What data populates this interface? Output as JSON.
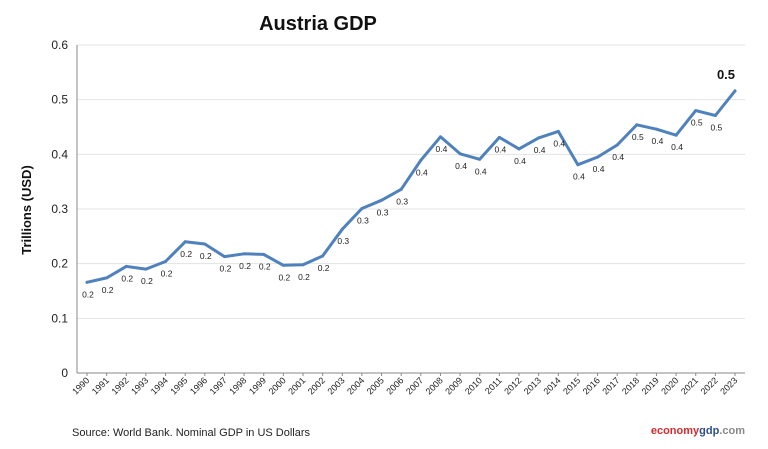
{
  "chart_data": {
    "type": "line",
    "title": "Austria GDP",
    "ylabel": "Trillions (USD)",
    "xlabel": "",
    "ylim": [
      0,
      0.6
    ],
    "yticks": [
      0,
      0.1,
      0.2,
      0.3,
      0.4,
      0.5,
      0.6
    ],
    "grid": true,
    "line_color": "#4f81bd",
    "x": [
      "1990",
      "1991",
      "1992",
      "1993",
      "1994",
      "1995",
      "1996",
      "1997",
      "1998",
      "1999",
      "2000",
      "2001",
      "2002",
      "2003",
      "2004",
      "2005",
      "2006",
      "2007",
      "2008",
      "2009",
      "2010",
      "2011",
      "2012",
      "2013",
      "2014",
      "2015",
      "2016",
      "2017",
      "2018",
      "2019",
      "2020",
      "2021",
      "2022",
      "2023"
    ],
    "values": [
      0.166,
      0.174,
      0.195,
      0.19,
      0.204,
      0.24,
      0.236,
      0.213,
      0.218,
      0.217,
      0.197,
      0.198,
      0.214,
      0.263,
      0.301,
      0.316,
      0.336,
      0.389,
      0.432,
      0.401,
      0.391,
      0.431,
      0.41,
      0.43,
      0.442,
      0.381,
      0.395,
      0.417,
      0.454,
      0.446,
      0.435,
      0.48,
      0.471,
      0.516
    ],
    "data_labels": [
      "0.2",
      "0.2",
      "0.2",
      "0.2",
      "0.2",
      "0.2",
      "0.2",
      "0.2",
      "0.2",
      "0.2",
      "0.2",
      "0.2",
      "0.2",
      "0.3",
      "0.3",
      "0.3",
      "0.3",
      "0.4",
      "0.4",
      "0.4",
      "0.4",
      "0.4",
      "0.4",
      "0.4",
      "0.4",
      "0.4",
      "0.4",
      "0.4",
      "0.5",
      "0.4",
      "0.4",
      "0.5",
      "0.5",
      "0.5"
    ]
  },
  "footer": {
    "source": "Source: World Bank.  Nominal GDP in US Dollars",
    "brand_part1": "economy",
    "brand_part2": "gdp",
    "brand_part3": ".com",
    "brand_color1": "#d62b2b",
    "brand_color2": "#2c4f8a",
    "brand_color3": "#888888"
  }
}
